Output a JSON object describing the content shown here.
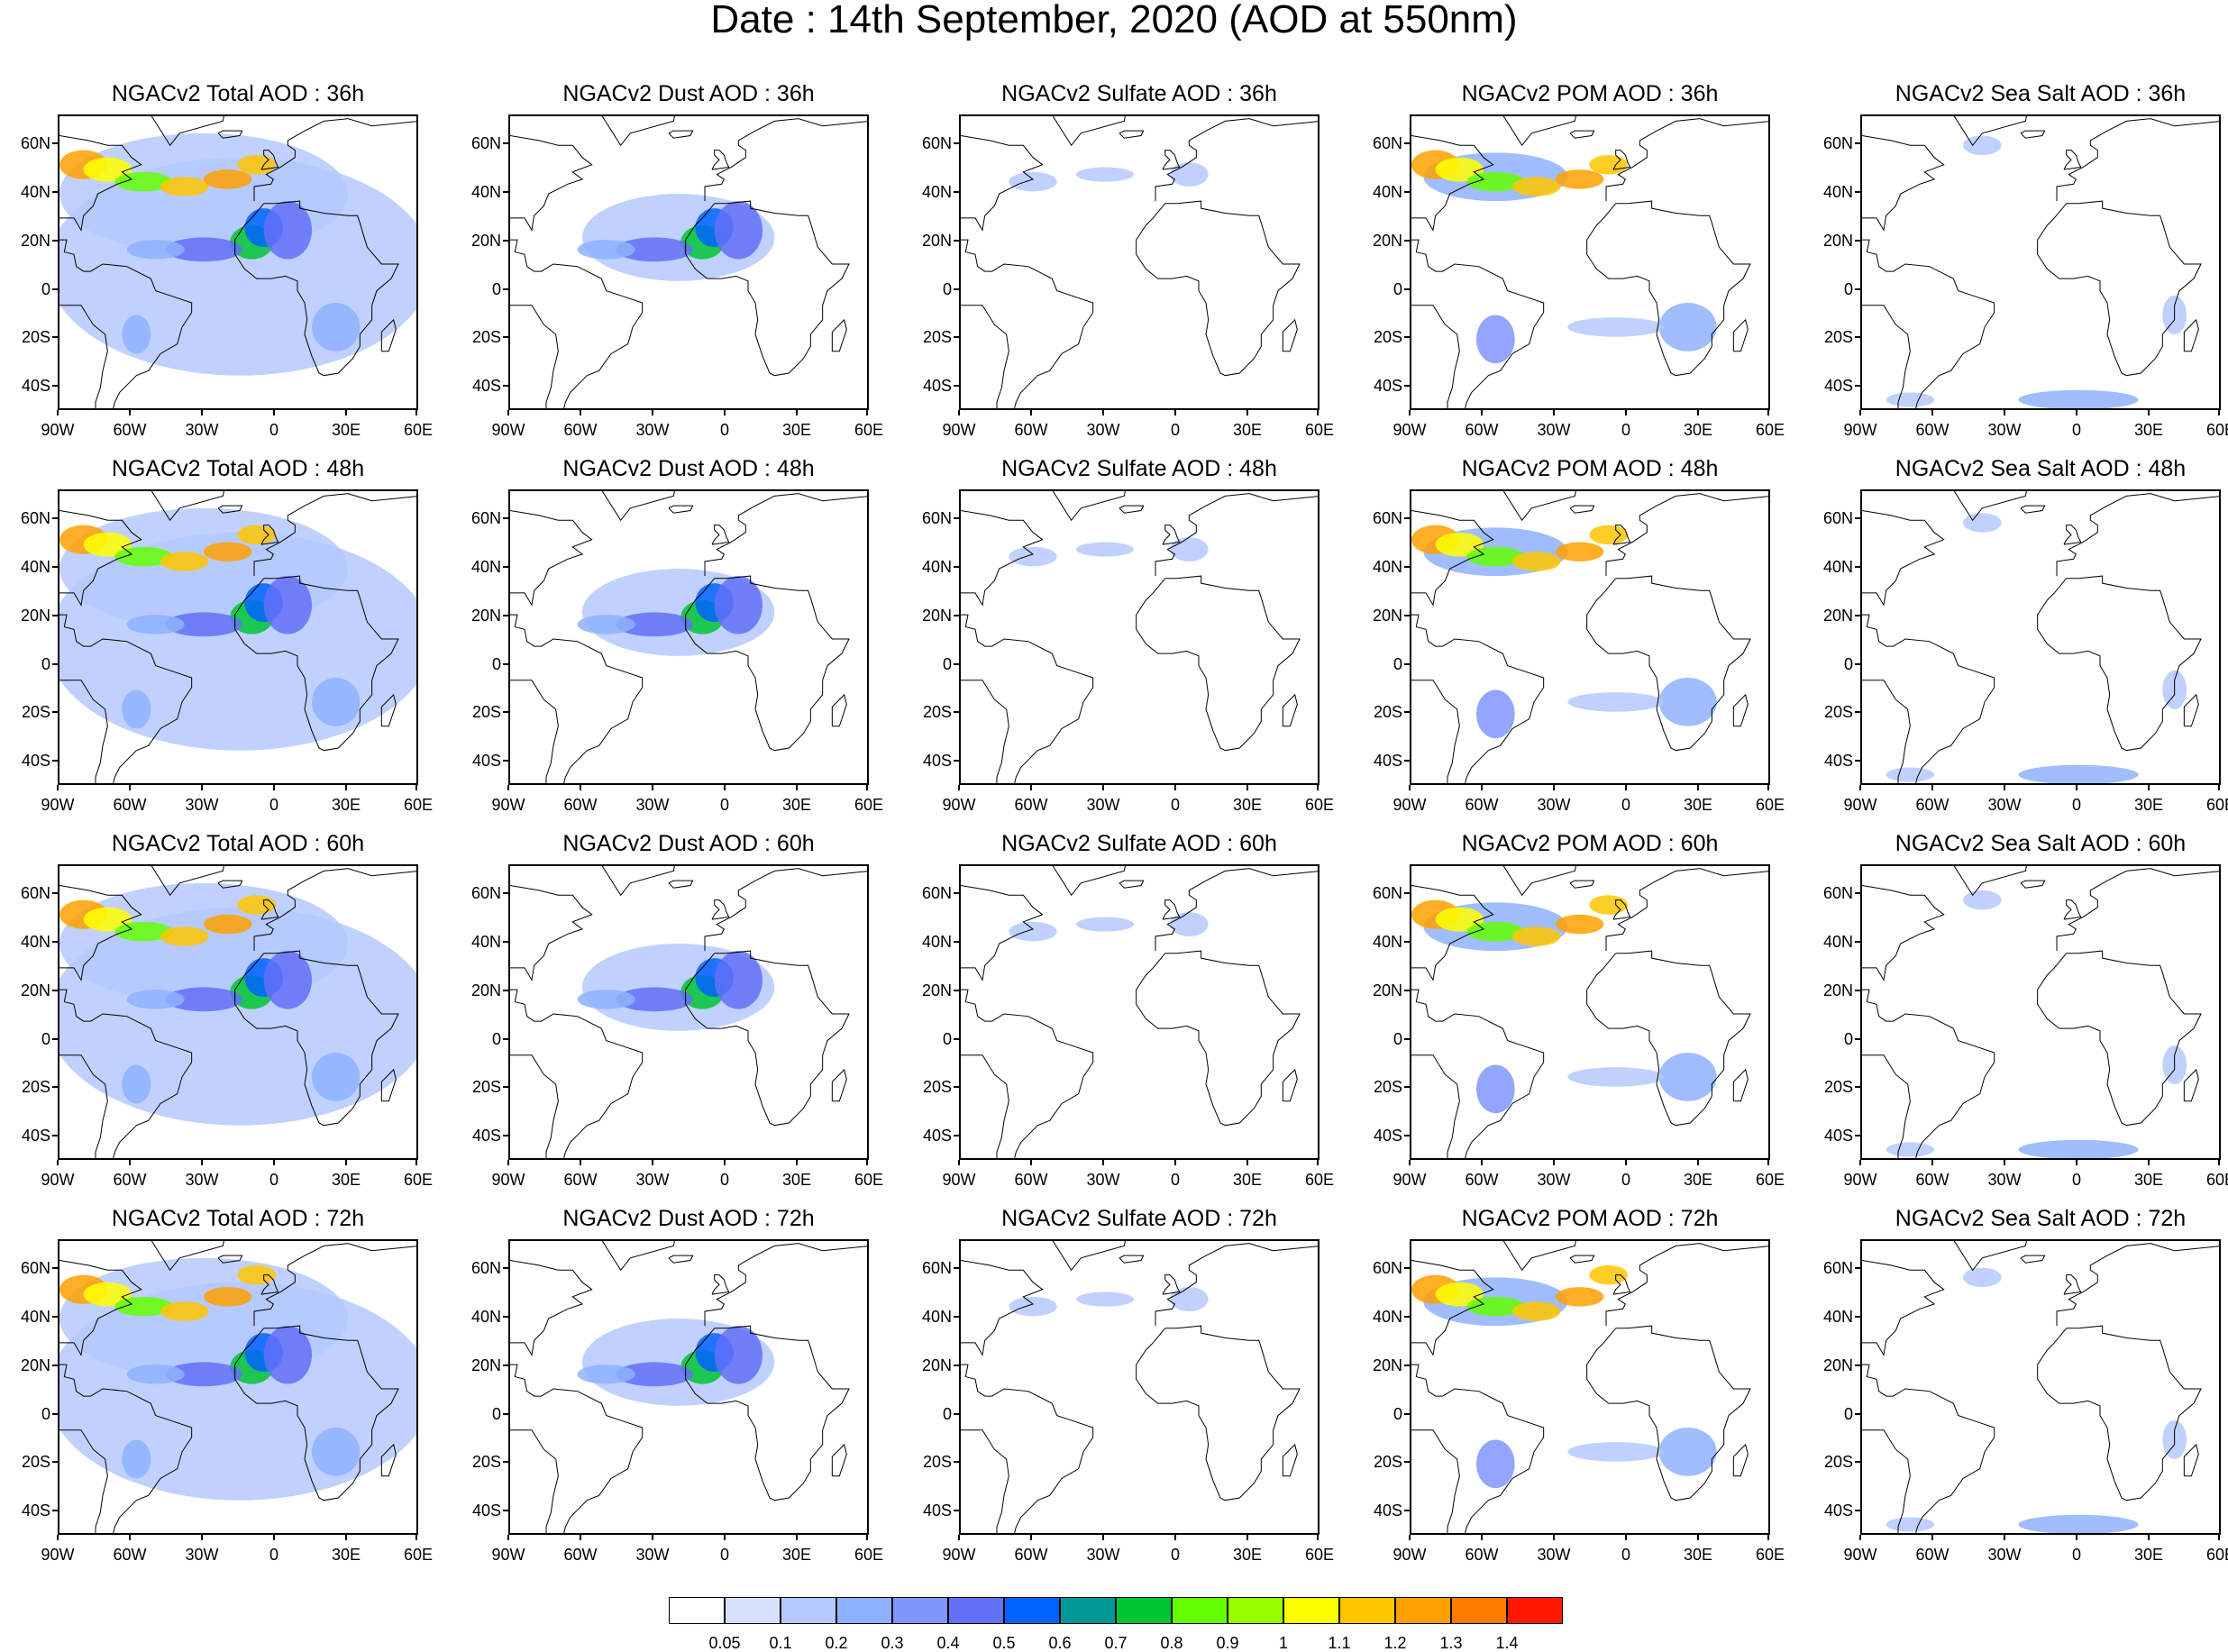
{
  "title": "Date : 14th September, 2020 (AOD at 550nm)",
  "panel_rows": [
    [
      "NGACv2 Total AOD : 36h",
      "NGACv2 Dust AOD : 36h",
      "NGACv2 Sulfate AOD : 36h",
      "NGACv2 POM AOD : 36h",
      "NGACv2 Sea Salt AOD : 36h"
    ],
    [
      "NGACv2 Total AOD : 48h",
      "NGACv2 Dust AOD : 48h",
      "NGACv2 Sulfate AOD : 48h",
      "NGACv2 POM AOD : 48h",
      "NGACv2 Sea Salt AOD : 48h"
    ],
    [
      "NGACv2 Total AOD : 60h",
      "NGACv2 Dust AOD : 60h",
      "NGACv2 Sulfate AOD : 60h",
      "NGACv2 POM AOD : 60h",
      "NGACv2 Sea Salt AOD : 60h"
    ],
    [
      "NGACv2 Total AOD : 72h",
      "NGACv2 Dust AOD : 72h",
      "NGACv2 Sulfate AOD : 72h",
      "NGACv2 POM AOD : 72h",
      "NGACv2 Sea Salt  AOD : 72h"
    ]
  ],
  "map_extent": {
    "lon": [
      -90,
      60
    ],
    "lat": [
      -50,
      72
    ]
  },
  "lat_ticks": [
    {
      "label": "60N",
      "lat": 60
    },
    {
      "label": "40N",
      "lat": 40
    },
    {
      "label": "20N",
      "lat": 20
    },
    {
      "label": "0",
      "lat": 0
    },
    {
      "label": "20S",
      "lat": -20
    },
    {
      "label": "40S",
      "lat": -40
    }
  ],
  "lon_ticks": [
    {
      "label": "90W",
      "lon": -90
    },
    {
      "label": "60W",
      "lon": -60
    },
    {
      "label": "30W",
      "lon": -30
    },
    {
      "label": "0",
      "lon": 0
    },
    {
      "label": "30E",
      "lon": 30
    },
    {
      "label": "60E",
      "lon": 60
    }
  ],
  "colorbar": {
    "colors": [
      "#ffffff",
      "#d6e2ff",
      "#b5c9ff",
      "#8eb2ff",
      "#7f96ff",
      "#6370f8",
      "#0063ff",
      "#009696",
      "#00c633",
      "#63ff00",
      "#96ff00",
      "#c6ff33",
      "#ffff00",
      "#ffc600",
      "#ffa000",
      "#ff7c00",
      "#ff1900"
    ],
    "labels": [
      "0.05",
      "0.1",
      "0.2",
      "0.3",
      "0.4",
      "0.5",
      "0.6",
      "0.7",
      "0.8",
      "0.9",
      "1",
      "1.1",
      "1.2",
      "1.3",
      "1.4"
    ]
  },
  "species": [
    "total",
    "dust",
    "sulfate",
    "pom",
    "seasalt"
  ],
  "forecast_hours": [
    36,
    48,
    60,
    72
  ]
}
